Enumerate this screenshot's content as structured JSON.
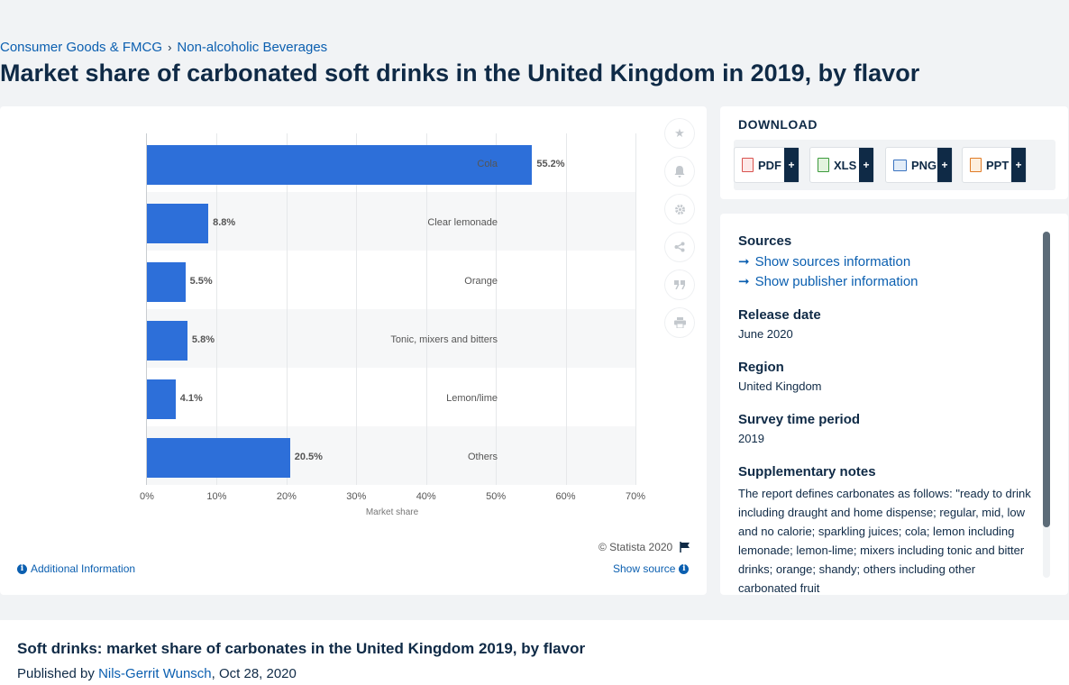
{
  "breadcrumb": {
    "item1": "Consumer Goods & FMCG",
    "sep": "›",
    "item2": "Non-alcoholic Beverages"
  },
  "page_title": "Market share of carbonated soft drinks in the United Kingdom in 2019, by flavor",
  "chart_data": {
    "type": "bar",
    "orientation": "horizontal",
    "categories": [
      "Cola",
      "Clear lemonade",
      "Orange",
      "Tonic, mixers and bitters",
      "Lemon/lime",
      "Others"
    ],
    "values": [
      55.2,
      8.8,
      5.5,
      5.8,
      4.1,
      20.5
    ],
    "value_labels": [
      "55.2%",
      "8.8%",
      "5.5%",
      "5.8%",
      "4.1%",
      "20.5%"
    ],
    "xlabel": "Market share",
    "ylabel": "",
    "xlim": [
      0,
      70
    ],
    "ticks": [
      "0%",
      "10%",
      "20%",
      "30%",
      "40%",
      "50%",
      "60%",
      "70%"
    ],
    "grid": true,
    "bar_color": "#2d6fd9"
  },
  "chart_footer": {
    "copyright": "© Statista 2020",
    "additional_info": "Additional Information",
    "show_source": "Show source"
  },
  "download": {
    "title": "DOWNLOAD",
    "buttons": [
      "PDF",
      "XLS",
      "PNG",
      "PPT"
    ],
    "plus": "+"
  },
  "meta": {
    "sources_h": "Sources",
    "show_sources": "Show sources information",
    "show_publisher": "Show publisher information",
    "release_h": "Release date",
    "release_v": "June 2020",
    "region_h": "Region",
    "region_v": "United Kingdom",
    "survey_h": "Survey time period",
    "survey_v": "2019",
    "notes_h": "Supplementary notes",
    "notes_v": "The report defines carbonates as follows: \"ready to drink including draught and home dispense; regular, mid, low and no calorie; sparkling juices; cola; lemon including lemonade; lemon-lime; mixers including tonic and bitter drinks; orange; shandy; others including other carbonated fruit"
  },
  "bottom": {
    "title": "Soft drinks: market share of carbonates in the United Kingdom 2019, by flavor",
    "published_by": "Published by ",
    "author": "Nils-Gerrit Wunsch",
    "date": ", Oct 28, 2020"
  }
}
